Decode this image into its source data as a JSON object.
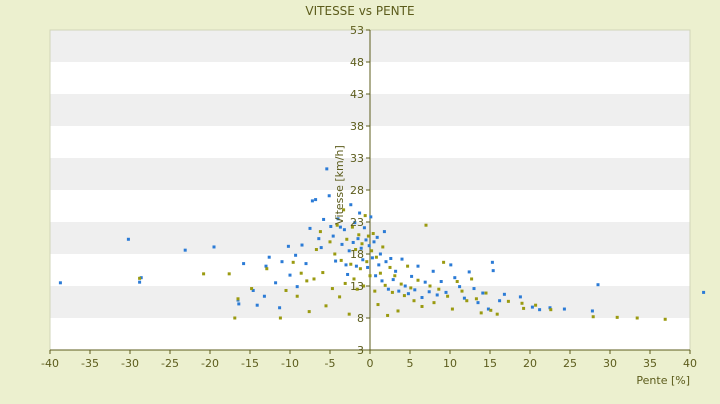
{
  "chart_data": {
    "type": "scatter",
    "title": "VITESSE vs PENTE",
    "xlabel": "Pente [%]",
    "ylabel": "Vitesse [km/h]",
    "xlim": [
      -40,
      40
    ],
    "ylim": [
      3,
      53
    ],
    "x_ticks": [
      -40,
      -35,
      -30,
      -25,
      -20,
      -15,
      -10,
      -5,
      0,
      5,
      10,
      15,
      20,
      25,
      30,
      35,
      40
    ],
    "y_ticks": [
      3,
      8,
      13,
      18,
      23,
      28,
      33,
      38,
      43,
      48,
      53
    ],
    "grid": "alternating horizontal bands",
    "colors": {
      "page_background": "#ecf0cf",
      "plot_band_light": "#ffffff",
      "plot_band_gray": "#efefef",
      "axis": "#5c5c1c",
      "text": "#5c5c1c",
      "marker_blue": "#2b7bd6",
      "marker_olive": "#9a9a10"
    },
    "series": [
      {
        "color": "#2b7bd6",
        "points": [
          [
            -38.7,
            13.5
          ],
          [
            -30.2,
            20.3
          ],
          [
            -28.6,
            14.3
          ],
          [
            -28.8,
            13.6
          ],
          [
            -23.1,
            18.6
          ],
          [
            -19.5,
            19.1
          ],
          [
            -16.5,
            10.8
          ],
          [
            -16.4,
            10.2
          ],
          [
            -15.8,
            16.5
          ],
          [
            -14.6,
            12.3
          ],
          [
            -14.1,
            10.0
          ],
          [
            -13.2,
            11.4
          ],
          [
            -12.6,
            17.5
          ],
          [
            -13.0,
            16.1
          ],
          [
            -11.8,
            13.5
          ],
          [
            -11.3,
            9.6
          ],
          [
            -11.0,
            16.8
          ],
          [
            -10.2,
            19.2
          ],
          [
            -10.0,
            14.7
          ],
          [
            -9.3,
            17.8
          ],
          [
            -9.1,
            12.9
          ],
          [
            -8.5,
            19.4
          ],
          [
            -8.0,
            16.5
          ],
          [
            -7.5,
            22.0
          ],
          [
            -7.2,
            26.3
          ],
          [
            -6.8,
            26.5
          ],
          [
            -6.4,
            20.4
          ],
          [
            -6.1,
            19.0
          ],
          [
            -5.8,
            23.4
          ],
          [
            -5.4,
            31.3
          ],
          [
            -5.1,
            27.1
          ],
          [
            -4.9,
            22.3
          ],
          [
            -4.6,
            20.8
          ],
          [
            -4.3,
            16.9
          ],
          [
            -4.0,
            23.5
          ],
          [
            -3.7,
            22.2
          ],
          [
            -3.5,
            19.5
          ],
          [
            -3.2,
            21.8
          ],
          [
            -3.0,
            16.3
          ],
          [
            -2.8,
            14.8
          ],
          [
            -2.6,
            18.5
          ],
          [
            -2.4,
            25.7
          ],
          [
            -2.1,
            19.8
          ],
          [
            -1.9,
            22.9
          ],
          [
            -1.7,
            16.1
          ],
          [
            -1.5,
            20.4
          ],
          [
            -1.3,
            24.4
          ],
          [
            -1.1,
            18.9
          ],
          [
            -0.9,
            17.1
          ],
          [
            -0.7,
            22.1
          ],
          [
            -0.5,
            20.2
          ],
          [
            -0.3,
            15.9
          ],
          [
            -0.1,
            19.3
          ],
          [
            0.1,
            23.8
          ],
          [
            0.3,
            17.4
          ],
          [
            0.5,
            19.9
          ],
          [
            0.7,
            14.6
          ],
          [
            0.9,
            20.6
          ],
          [
            1.1,
            16.3
          ],
          [
            1.3,
            18.0
          ],
          [
            1.5,
            13.8
          ],
          [
            1.8,
            21.5
          ],
          [
            2.0,
            16.8
          ],
          [
            2.3,
            12.5
          ],
          [
            2.6,
            17.3
          ],
          [
            2.9,
            14.0
          ],
          [
            3.2,
            15.3
          ],
          [
            3.6,
            12.2
          ],
          [
            4.0,
            17.2
          ],
          [
            4.4,
            13.0
          ],
          [
            4.8,
            11.8
          ],
          [
            5.2,
            14.5
          ],
          [
            5.6,
            12.4
          ],
          [
            6.0,
            16.1
          ],
          [
            6.5,
            11.2
          ],
          [
            6.9,
            13.6
          ],
          [
            7.4,
            12.1
          ],
          [
            7.9,
            15.3
          ],
          [
            8.4,
            11.6
          ],
          [
            8.9,
            13.7
          ],
          [
            9.5,
            12.0
          ],
          [
            10.1,
            16.3
          ],
          [
            10.6,
            14.3
          ],
          [
            11.2,
            12.9
          ],
          [
            11.8,
            11.1
          ],
          [
            12.4,
            15.2
          ],
          [
            13.0,
            12.6
          ],
          [
            13.5,
            10.4
          ],
          [
            14.1,
            11.9
          ],
          [
            14.8,
            9.4
          ],
          [
            15.3,
            16.7
          ],
          [
            15.4,
            15.4
          ],
          [
            16.2,
            10.7
          ],
          [
            16.8,
            11.7
          ],
          [
            18.8,
            11.3
          ],
          [
            20.3,
            9.7
          ],
          [
            21.2,
            9.3
          ],
          [
            22.5,
            9.6
          ],
          [
            24.3,
            9.4
          ],
          [
            27.8,
            9.1
          ],
          [
            28.5,
            13.2
          ],
          [
            41.7,
            12.0
          ]
        ]
      },
      {
        "color": "#9a9a10",
        "points": [
          [
            -28.8,
            14.2
          ],
          [
            -20.8,
            14.9
          ],
          [
            -17.6,
            14.9
          ],
          [
            -16.9,
            8.0
          ],
          [
            -16.5,
            11.0
          ],
          [
            -14.8,
            12.6
          ],
          [
            -12.9,
            15.7
          ],
          [
            -11.2,
            8.0
          ],
          [
            -10.5,
            12.3
          ],
          [
            -9.6,
            16.7
          ],
          [
            -9.1,
            11.4
          ],
          [
            -8.6,
            15.0
          ],
          [
            -7.9,
            13.8
          ],
          [
            -7.6,
            9.0
          ],
          [
            -7.0,
            14.1
          ],
          [
            -6.7,
            18.7
          ],
          [
            -6.2,
            21.5
          ],
          [
            -5.9,
            15.1
          ],
          [
            -5.5,
            9.9
          ],
          [
            -5.0,
            19.9
          ],
          [
            -4.7,
            12.6
          ],
          [
            -4.4,
            18.0
          ],
          [
            -4.1,
            22.5
          ],
          [
            -3.8,
            11.3
          ],
          [
            -3.6,
            17.0
          ],
          [
            -3.3,
            24.9
          ],
          [
            -3.1,
            13.4
          ],
          [
            -2.9,
            20.3
          ],
          [
            -2.6,
            8.6
          ],
          [
            -2.4,
            16.4
          ],
          [
            -2.2,
            22.2
          ],
          [
            -2.0,
            14.1
          ],
          [
            -1.8,
            18.7
          ],
          [
            -1.6,
            12.5
          ],
          [
            -1.4,
            21.0
          ],
          [
            -1.2,
            15.7
          ],
          [
            -1.0,
            19.6
          ],
          [
            -0.8,
            13.0
          ],
          [
            -0.6,
            24.0
          ],
          [
            -0.4,
            16.8
          ],
          [
            -0.2,
            20.8
          ],
          [
            0.0,
            14.6
          ],
          [
            0.2,
            18.5
          ],
          [
            0.4,
            21.2
          ],
          [
            0.6,
            12.2
          ],
          [
            0.8,
            17.5
          ],
          [
            1.0,
            10.1
          ],
          [
            1.3,
            15.0
          ],
          [
            1.6,
            19.1
          ],
          [
            1.9,
            13.1
          ],
          [
            2.2,
            8.4
          ],
          [
            2.5,
            15.9
          ],
          [
            2.8,
            12.0
          ],
          [
            3.1,
            14.6
          ],
          [
            3.5,
            9.1
          ],
          [
            3.9,
            13.3
          ],
          [
            4.3,
            11.5
          ],
          [
            4.7,
            16.1
          ],
          [
            5.1,
            12.7
          ],
          [
            5.5,
            10.7
          ],
          [
            6.0,
            13.9
          ],
          [
            6.5,
            9.8
          ],
          [
            7.0,
            22.5
          ],
          [
            7.5,
            13.0
          ],
          [
            8.0,
            10.4
          ],
          [
            8.6,
            12.5
          ],
          [
            9.2,
            16.7
          ],
          [
            9.7,
            11.4
          ],
          [
            10.3,
            9.4
          ],
          [
            10.9,
            13.7
          ],
          [
            11.5,
            12.2
          ],
          [
            12.1,
            10.7
          ],
          [
            12.7,
            14.1
          ],
          [
            13.3,
            11.0
          ],
          [
            13.9,
            8.8
          ],
          [
            14.5,
            11.9
          ],
          [
            15.1,
            9.2
          ],
          [
            15.9,
            8.6
          ],
          [
            17.3,
            10.6
          ],
          [
            19.0,
            10.3
          ],
          [
            19.2,
            9.5
          ],
          [
            20.7,
            10.0
          ],
          [
            22.6,
            9.3
          ],
          [
            27.9,
            8.2
          ],
          [
            30.9,
            8.1
          ],
          [
            33.4,
            8.0
          ],
          [
            36.9,
            7.8
          ]
        ]
      }
    ]
  }
}
